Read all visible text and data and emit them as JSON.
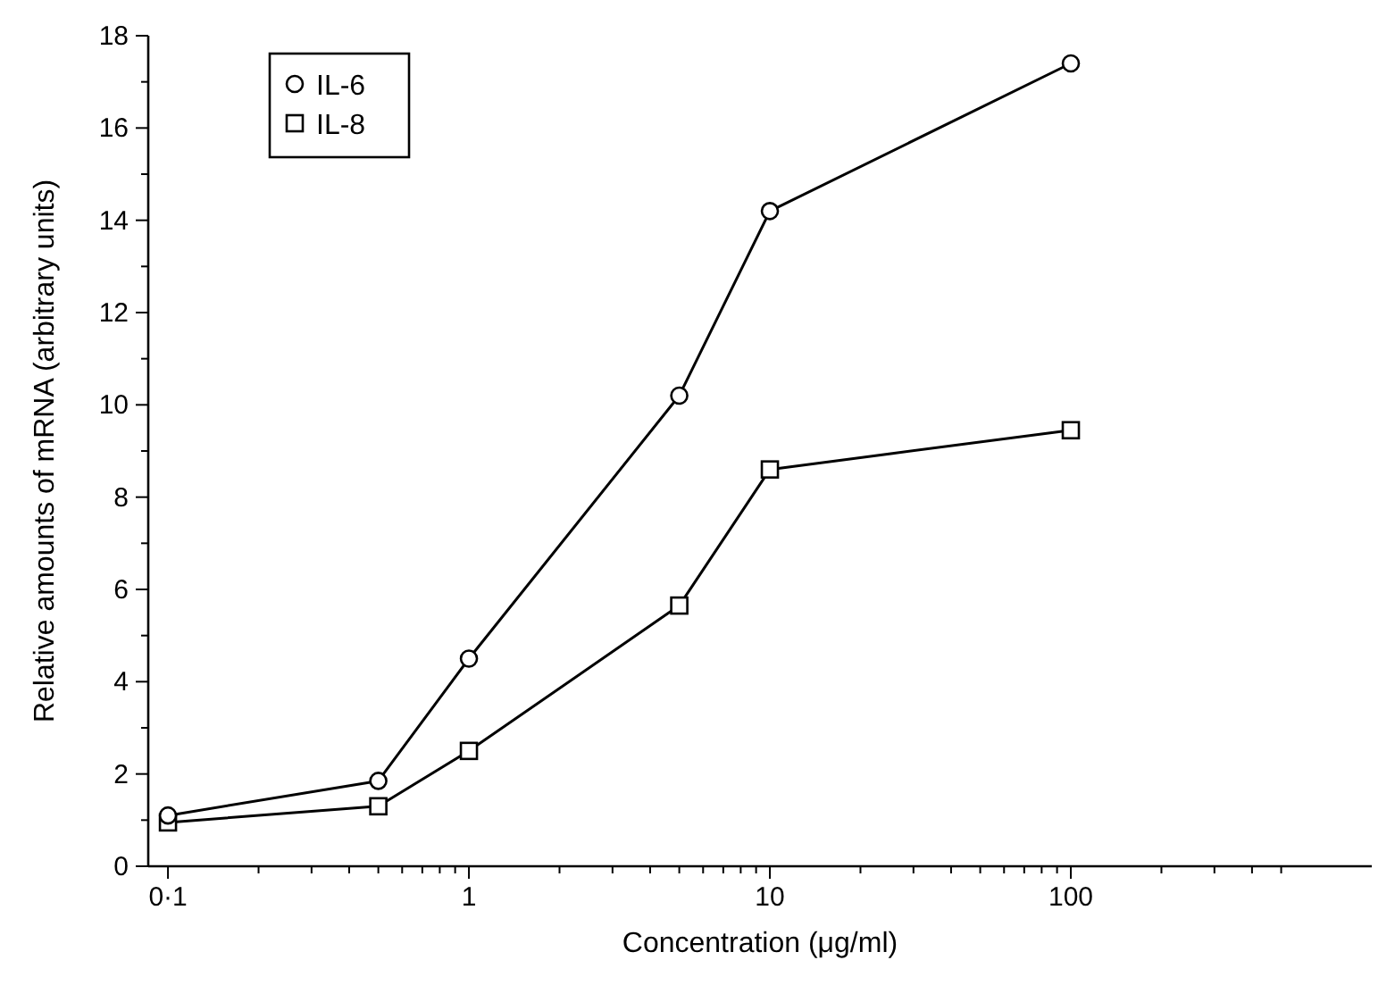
{
  "chart_data": {
    "type": "line",
    "xlabel": "Concentration (μg/ml)",
    "ylabel": "Relative amounts of mRNA (arbitrary units)",
    "log": "x",
    "xlim": [
      0.086,
      1000
    ],
    "ylim": [
      0,
      18
    ],
    "xticks": [
      {
        "value": 0.1,
        "label": "0·1"
      },
      {
        "value": 0.2,
        "label": null
      },
      {
        "value": 0.3,
        "label": null
      },
      {
        "value": 0.4,
        "label": null
      },
      {
        "value": 0.5,
        "label": null
      },
      {
        "value": 0.6,
        "label": null
      },
      {
        "value": 0.7,
        "label": null
      },
      {
        "value": 0.8,
        "label": null
      },
      {
        "value": 0.9,
        "label": null
      },
      1,
      {
        "value": 2,
        "label": null
      },
      {
        "value": 3,
        "label": null
      },
      {
        "value": 4,
        "label": null
      },
      {
        "value": 5,
        "label": null
      },
      {
        "value": 6,
        "label": null
      },
      {
        "value": 7,
        "label": null
      },
      {
        "value": 8,
        "label": null
      },
      {
        "value": 9,
        "label": null
      },
      10,
      {
        "value": 20,
        "label": null
      },
      {
        "value": 30,
        "label": null
      },
      {
        "value": 40,
        "label": null
      },
      {
        "value": 50,
        "label": null
      },
      {
        "value": 60,
        "label": null
      },
      {
        "value": 70,
        "label": null
      },
      {
        "value": 80,
        "label": null
      },
      {
        "value": 90,
        "label": null
      },
      100,
      {
        "value": 200,
        "label": null
      },
      {
        "value": 300,
        "label": null
      },
      {
        "value": 400,
        "label": null
      },
      {
        "value": 500,
        "label": null
      }
    ],
    "yticks": [
      0,
      {
        "value": 1,
        "label": null
      },
      2,
      {
        "value": 3,
        "label": null
      },
      4,
      {
        "value": 5,
        "label": null
      },
      6,
      {
        "value": 7,
        "label": null
      },
      8,
      {
        "value": 9,
        "label": null
      },
      10,
      {
        "value": 11,
        "label": null
      },
      12,
      {
        "value": 13,
        "label": null
      },
      14,
      {
        "value": 15,
        "label": null
      },
      16,
      {
        "value": 17,
        "label": null
      },
      18
    ],
    "x": [
      0.1,
      0.5,
      1,
      5,
      10,
      100
    ],
    "grid": false,
    "legend": "top left",
    "line_style": "solid",
    "series": [
      {
        "name": "IL-6",
        "color": "#000000",
        "marker": "circle",
        "values": [
          1.1,
          1.85,
          4.5,
          10.2,
          14.2,
          17.4
        ]
      },
      {
        "name": "IL-8",
        "color": "#000000",
        "marker": "square",
        "values": [
          0.95,
          1.3,
          2.5,
          5.65,
          8.6,
          9.45
        ]
      }
    ]
  }
}
